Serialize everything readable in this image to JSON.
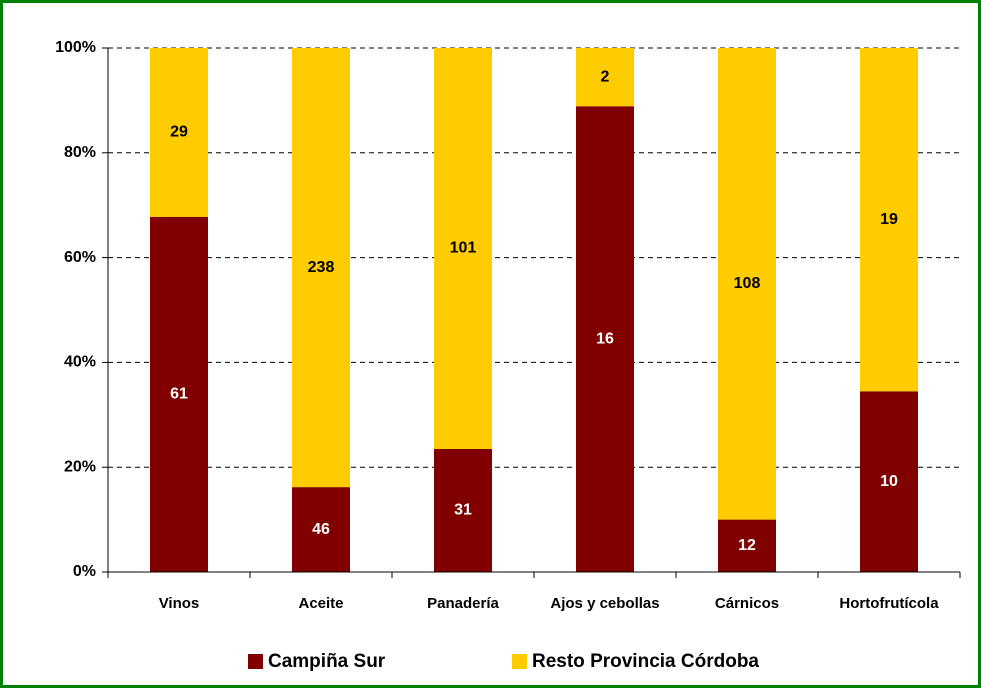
{
  "chart_data": {
    "type": "bar",
    "stack": "percent",
    "categories": [
      "Vinos",
      "Aceite",
      "Panadería",
      "Ajos y cebollas",
      "Cárnicos",
      "Hortofrutícola"
    ],
    "series": [
      {
        "name": "Campiña Sur",
        "color": "#800000",
        "values": [
          61,
          46,
          31,
          16,
          12,
          10
        ]
      },
      {
        "name": "Resto Provincia Córdoba",
        "color": "#ffcc00",
        "values": [
          29,
          238,
          101,
          2,
          108,
          19
        ]
      }
    ],
    "ylim": [
      0,
      100
    ],
    "yticks": [
      {
        "value": 0,
        "label": "0%"
      },
      {
        "value": 20,
        "label": "20%"
      },
      {
        "value": 40,
        "label": "40%"
      },
      {
        "value": 60,
        "label": "60%"
      },
      {
        "value": 80,
        "label": "80%"
      },
      {
        "value": 100,
        "label": "100%"
      }
    ],
    "grid": true,
    "legend": "bottom"
  }
}
